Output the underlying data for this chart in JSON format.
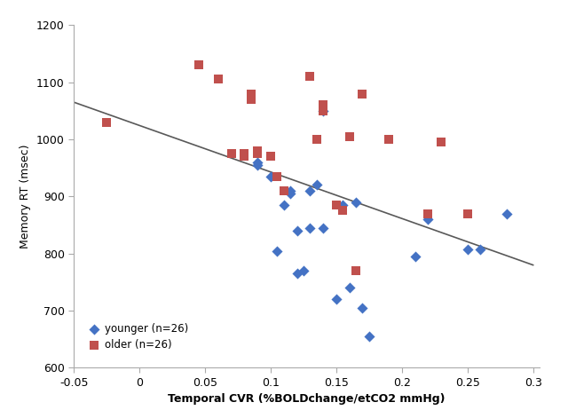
{
  "younger_x": [
    0.09,
    0.09,
    0.1,
    0.105,
    0.11,
    0.115,
    0.115,
    0.12,
    0.12,
    0.125,
    0.13,
    0.13,
    0.135,
    0.14,
    0.14,
    0.15,
    0.155,
    0.16,
    0.165,
    0.17,
    0.175,
    0.21,
    0.22,
    0.25,
    0.26,
    0.28
  ],
  "younger_y": [
    960,
    955,
    935,
    805,
    885,
    910,
    905,
    840,
    765,
    770,
    910,
    845,
    920,
    1050,
    845,
    720,
    885,
    740,
    890,
    705,
    655,
    795,
    860,
    807,
    808,
    870
  ],
  "older_x": [
    -0.025,
    0.045,
    0.06,
    0.07,
    0.08,
    0.08,
    0.085,
    0.085,
    0.09,
    0.09,
    0.1,
    0.105,
    0.11,
    0.13,
    0.135,
    0.14,
    0.14,
    0.15,
    0.155,
    0.16,
    0.165,
    0.17,
    0.19,
    0.22,
    0.23,
    0.25
  ],
  "older_y": [
    1030,
    1130,
    1105,
    975,
    970,
    975,
    1080,
    1070,
    975,
    980,
    970,
    935,
    910,
    1110,
    1000,
    1060,
    1050,
    885,
    875,
    1005,
    770,
    1080,
    1000,
    870,
    995,
    870
  ],
  "line_x": [
    -0.05,
    0.3
  ],
  "line_y": [
    1065,
    780
  ],
  "xlabel": "Temporal CVR (%BOLDchange/etCO2 mmHg)",
  "ylabel": "Memory RT (msec)",
  "xlim": [
    -0.05,
    0.305
  ],
  "ylim": [
    600,
    1200
  ],
  "xticks": [
    -0.05,
    0,
    0.05,
    0.1,
    0.15,
    0.2,
    0.25,
    0.3
  ],
  "yticks": [
    600,
    700,
    800,
    900,
    1000,
    1100,
    1200
  ],
  "younger_label": "younger (n=26)",
  "older_label": "older (n=26)",
  "younger_color": "#4472C4",
  "older_color": "#C0504D",
  "line_color": "#595959",
  "spine_color": "#AAAAAA",
  "bg_color": "#FFFFFF",
  "fig_bg_color": "#FFFFFF"
}
